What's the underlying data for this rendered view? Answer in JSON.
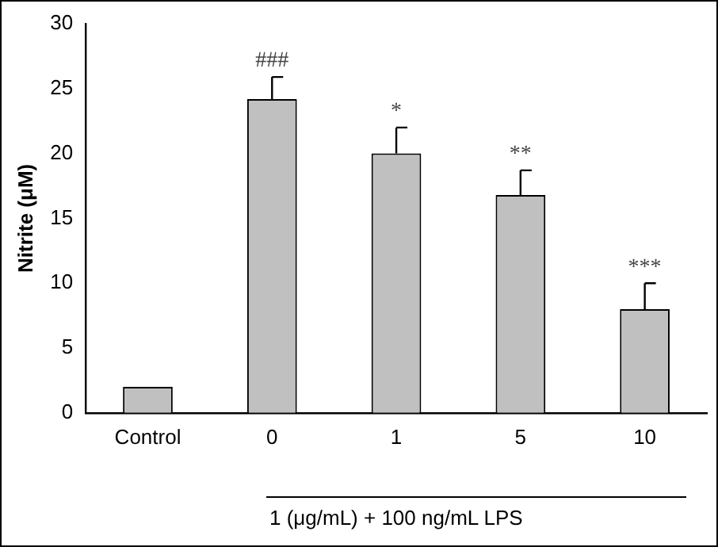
{
  "chart_data": {
    "type": "bar",
    "ylabel": "Nitrite (μM)",
    "categories": [
      "Control",
      "0",
      "1",
      "5",
      "10"
    ],
    "values": [
      2.0,
      24.2,
      20.0,
      16.8,
      8.0
    ],
    "errors": [
      null,
      [
        24.2,
        25.9
      ],
      [
        20.0,
        22.0
      ],
      [
        16.8,
        18.7
      ],
      [
        8.0,
        10.0
      ]
    ],
    "color": "#c0c0c0",
    "ylim": [
      0,
      30
    ],
    "yticks": [
      0,
      5,
      10,
      15,
      20,
      25,
      30
    ],
    "grid": false,
    "legend": false,
    "annotations": [
      {
        "text": "###",
        "x": "0",
        "y": 25.9
      },
      {
        "text": "*",
        "x": "1",
        "y": 22.0
      },
      {
        "text": "**",
        "x": "5",
        "y": 18.7
      },
      {
        "text": "***",
        "x": "10",
        "y": 10.0
      },
      "1 (μg/mL) + 100 ng/mL LPS"
    ]
  }
}
